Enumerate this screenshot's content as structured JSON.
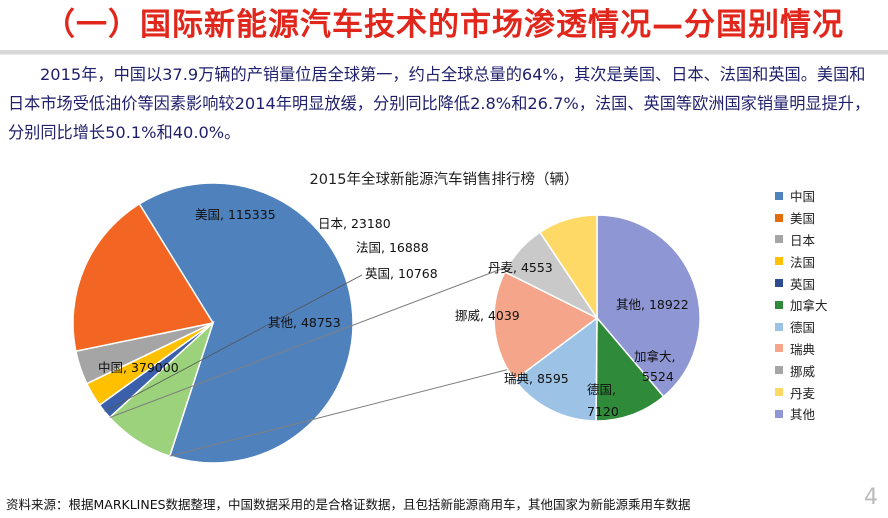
{
  "header": {
    "title": "（一）国际新能源汽车技术的市场渗透情况—分国别情况"
  },
  "intro": {
    "text": "2015年，中国以37.9万辆的产销量位居全球第一，约占全球总量的64%，其次是美国、日本、法国和英国。美国和日本市场受低油价等因素影响较2014年明显放缓，分别同比降低2.8%和26.7%，法国、英国等欧洲国家销量明显提升，分别同比增长50.1%和40.0%。"
  },
  "chart_data": {
    "type": "pie",
    "title": "2015年全球新能源汽车销售排行榜（辆）",
    "main_pie": {
      "slices": [
        {
          "name": "中国",
          "value": 379000,
          "label": "中国, 379000",
          "color": "#4f81bd"
        },
        {
          "name": "美国",
          "value": 115335,
          "label": "美国, 115335",
          "color": "#f26522"
        },
        {
          "name": "日本",
          "value": 23180,
          "label": "日本, 23180",
          "color": "#a5a5a5"
        },
        {
          "name": "法国",
          "value": 16888,
          "label": "法国, 16888",
          "color": "#ffc000"
        },
        {
          "name": "英国",
          "value": 10768,
          "label": "英国, 10768",
          "color": "#3a5fab"
        },
        {
          "name": "其他",
          "value": 48753,
          "label": "其他, 48753",
          "color": "#9bd27b"
        }
      ]
    },
    "secondary_pie": {
      "slices": [
        {
          "name": "其他",
          "value": 18922,
          "label": "其他, 18922",
          "color": "#8e96d4"
        },
        {
          "name": "加拿大",
          "value": 5524,
          "label": "加拿大, 5524",
          "color": "#2f8b3a"
        },
        {
          "name": "德国",
          "value": 7120,
          "label": "德国, 7120",
          "color": "#9cc3e6"
        },
        {
          "name": "瑞典",
          "value": 8595,
          "label": "瑞典, 8595",
          "color": "#f4a58a"
        },
        {
          "name": "挪威",
          "value": 4039,
          "label": "挪威, 4039",
          "color": "#c9c9c9"
        },
        {
          "name": "丹麦",
          "value": 4553,
          "label": "丹麦, 4553",
          "color": "#ffd966"
        }
      ]
    },
    "legend": [
      {
        "name": "中国",
        "color": "#4f81bd"
      },
      {
        "name": "美国",
        "color": "#e46c0a"
      },
      {
        "name": "日本",
        "color": "#a5a5a5"
      },
      {
        "name": "法国",
        "color": "#ffc000"
      },
      {
        "name": "英国",
        "color": "#2e4b8f"
      },
      {
        "name": "加拿大",
        "color": "#2f8b3a"
      },
      {
        "name": "德国",
        "color": "#9cc3e6"
      },
      {
        "name": "瑞典",
        "color": "#f4a58a"
      },
      {
        "name": "挪威",
        "color": "#a5a5a5"
      },
      {
        "name": "丹麦",
        "color": "#ffd966"
      },
      {
        "name": "其他",
        "color": "#8e96d4"
      }
    ],
    "legend_position": "right"
  },
  "footer": {
    "source": "资料来源：根据MARKLINES数据整理，中国数据采用的是合格证数据，且包括新能源商用车，其他国家为新能源乘用车数据",
    "page": "4"
  }
}
